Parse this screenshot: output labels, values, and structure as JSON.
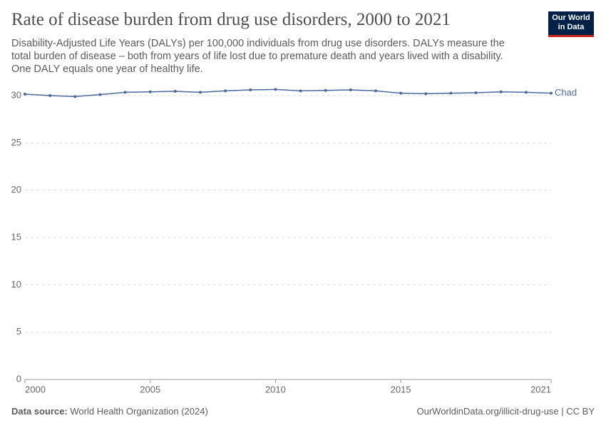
{
  "chart_data": {
    "type": "line",
    "title": "Rate of disease burden from drug use disorders, 2000 to 2021",
    "subtitle": "Disability-Adjusted Life Years (DALYs) per 100,000 individuals from drug use disorders. DALYs measure the total burden of disease – both from years of life lost due to premature death and years lived with a disability. One DALY equals one year of healthy life.",
    "logo": [
      "Our World",
      "in Data"
    ],
    "source_label": "Data source:",
    "source": "World Health Organization (2024)",
    "credit": "OurWorldinData.org/illicit-drug-use | CC BY",
    "x": [
      2000,
      2001,
      2002,
      2003,
      2004,
      2005,
      2006,
      2007,
      2008,
      2009,
      2010,
      2011,
      2012,
      2013,
      2014,
      2015,
      2016,
      2017,
      2018,
      2019,
      2020,
      2021
    ],
    "series": [
      {
        "name": "Chad",
        "color": "#4c6a9c",
        "values": [
          30.15,
          30.0,
          29.9,
          30.1,
          30.35,
          30.4,
          30.45,
          30.35,
          30.5,
          30.6,
          30.65,
          30.5,
          30.55,
          30.6,
          30.5,
          30.25,
          30.2,
          30.25,
          30.3,
          30.4,
          30.35,
          30.25
        ]
      }
    ],
    "xlim": [
      2000,
      2021
    ],
    "xticks": [
      2000,
      2005,
      2010,
      2015,
      2021
    ],
    "ylim": [
      0,
      30
    ],
    "yticks": [
      0,
      5,
      10,
      15,
      20,
      25,
      30
    ],
    "grid": true
  }
}
